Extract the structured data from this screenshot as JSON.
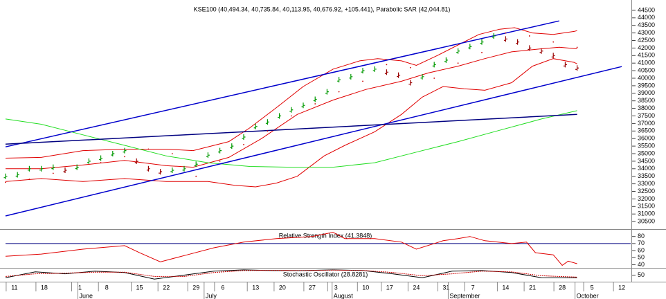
{
  "chart_data": [
    {
      "type": "stock",
      "title": "KSE100 (40,494.34, 40,735.84, 40,113.95, 40,676.92, +105.441), Parabolic SAR (42,044.81)",
      "xlim": [
        0,
        105
      ],
      "xticks": [
        {
          "value": 1.5,
          "label": "11"
        },
        {
          "value": 6.5,
          "label": "18"
        },
        {
          "value": 12.5,
          "label": "1"
        },
        {
          "value": 17,
          "label": "8"
        },
        {
          "value": 22.5,
          "label": "15"
        },
        {
          "value": 27,
          "label": "22"
        },
        {
          "value": 32,
          "label": "29"
        },
        {
          "value": 36.5,
          "label": "6"
        },
        {
          "value": 42,
          "label": "13"
        },
        {
          "value": 46.5,
          "label": "20"
        },
        {
          "value": 51.5,
          "label": "27"
        },
        {
          "value": 55.5,
          "label": "3"
        },
        {
          "value": 60.5,
          "label": "10"
        },
        {
          "value": 64.5,
          "label": "17"
        },
        {
          "value": 69,
          "label": "24"
        },
        {
          "value": 74,
          "label": "31"
        },
        {
          "value": 78.5,
          "label": "7"
        },
        {
          "value": 84,
          "label": "14"
        },
        {
          "value": 88.5,
          "label": "21"
        },
        {
          "value": 93.5,
          "label": "28"
        },
        {
          "value": 98.5,
          "label": "5"
        },
        {
          "value": 103.5,
          "label": "12"
        }
      ],
      "months": [
        {
          "x": 12.5,
          "text": "June"
        },
        {
          "x": 33.7,
          "text": "July"
        },
        {
          "x": 55.2,
          "text": "August"
        },
        {
          "x": 74.7,
          "text": "September"
        },
        {
          "x": 96,
          "text": "October"
        }
      ],
      "ylim": [
        30000,
        45000
      ],
      "yticks": [
        30500,
        31000,
        31500,
        32000,
        32500,
        33000,
        33500,
        34000,
        34500,
        35000,
        35500,
        36000,
        36500,
        37000,
        37500,
        38000,
        38500,
        39000,
        39500,
        40000,
        40500,
        41000,
        41500,
        42000,
        42500,
        43000,
        43500,
        44000,
        44500
      ],
      "price": {
        "up_color": "#009900",
        "down_color": "#990000",
        "x": [
          0,
          2,
          4,
          6,
          8,
          10,
          12,
          14,
          16,
          18,
          20,
          22,
          24,
          26,
          28,
          30,
          32,
          34,
          36,
          38,
          40,
          42,
          44,
          46,
          48,
          50,
          52,
          54,
          56,
          58,
          60,
          62,
          64,
          66,
          68,
          70,
          72,
          74,
          76,
          78,
          80,
          82,
          84,
          86,
          88,
          90,
          92,
          94,
          96
        ],
        "values": [
          33500,
          33600,
          34000,
          34000,
          34100,
          33900,
          34100,
          34500,
          34700,
          35000,
          35200,
          34500,
          34000,
          33800,
          33900,
          34000,
          34300,
          34900,
          35200,
          35500,
          36100,
          36800,
          37100,
          37500,
          37900,
          38200,
          38600,
          39100,
          39900,
          40100,
          40500,
          40600,
          40400,
          40200,
          39700,
          40100,
          40900,
          41200,
          41800,
          42100,
          42400,
          42800,
          42600,
          42400,
          42000,
          41800,
          41500,
          40900,
          40676.92
        ]
      },
      "sar": {
        "color": "#cc0000",
        "x": [
          0,
          4,
          8,
          12,
          16,
          20,
          24,
          28,
          32,
          36,
          40,
          44,
          48,
          52,
          56,
          60,
          64,
          68,
          72,
          76,
          80,
          84,
          88,
          92,
          96
        ],
        "values": [
          33100,
          33300,
          33700,
          34100,
          34400,
          34800,
          35300,
          35000,
          33500,
          34500,
          35600,
          36500,
          37500,
          38300,
          39100,
          39800,
          40900,
          40700,
          40000,
          41000,
          41700,
          43000,
          42800,
          42400,
          42044.81
        ]
      },
      "bands": [
        {
          "color": "#e00000",
          "x": [
            0,
            6,
            13,
            20,
            27,
            31.5,
            37.5,
            41,
            45.5,
            50,
            55,
            59.5,
            62.5,
            66.5,
            69,
            72.5,
            76,
            79.5,
            83,
            85.5,
            88.5,
            92,
            95.5,
            96
          ],
          "values": [
            34700,
            34750,
            35200,
            35300,
            35300,
            35200,
            35800,
            36700,
            38050,
            39450,
            40600,
            41150,
            41300,
            41150,
            40850,
            41500,
            42200,
            42900,
            43250,
            43350,
            43000,
            42900,
            43100,
            43150
          ]
        },
        {
          "color": "#e00000",
          "x": [
            0,
            6,
            13,
            20,
            27,
            31.5,
            37.5,
            43,
            49,
            55,
            60.5,
            66.5,
            71,
            76,
            80.5,
            85,
            90,
            93,
            96
          ],
          "values": [
            34000,
            34000,
            34250,
            34550,
            34200,
            34100,
            34750,
            36000,
            37600,
            38550,
            39250,
            39800,
            40350,
            40800,
            41300,
            41750,
            41950,
            42050,
            41950
          ]
        },
        {
          "color": "#e00000",
          "x": [
            0,
            6,
            13,
            20,
            27,
            34,
            38.5,
            42,
            45.5,
            49,
            53.5,
            57,
            62,
            66.5,
            70,
            73.5,
            77,
            80.5,
            85,
            88.5,
            92,
            95.5,
            96
          ],
          "values": [
            33150,
            33350,
            33150,
            33350,
            33150,
            33150,
            32900,
            32800,
            33050,
            33500,
            34850,
            35550,
            36450,
            37600,
            38750,
            39450,
            39300,
            39200,
            39700,
            40800,
            41300,
            41050,
            40950
          ]
        },
        {
          "color": "#22dd22",
          "x": [
            0,
            6,
            13,
            20,
            27,
            34,
            41,
            48,
            55,
            62,
            69,
            76,
            83,
            90,
            96
          ],
          "values": [
            37300,
            36950,
            36250,
            35550,
            34850,
            34400,
            34150,
            34100,
            34100,
            34400,
            35100,
            35800,
            36550,
            37300,
            37850
          ]
        }
      ],
      "trend_lines": [
        {
          "color": "#0000cc",
          "x": [
            0,
            93
          ],
          "values": [
            35450,
            43800
          ]
        },
        {
          "color": "#0000cc",
          "x": [
            0,
            103.5
          ],
          "values": [
            30870,
            40770
          ]
        },
        {
          "color": "#000080",
          "x": [
            0,
            96
          ],
          "values": [
            35630,
            37600
          ]
        }
      ]
    },
    {
      "type": "line",
      "title": "Relative Strength Index (41.3848)",
      "xlim": [
        0,
        105
      ],
      "ylim": [
        35,
        90
      ],
      "yticks": [
        40,
        50,
        60,
        70,
        80
      ],
      "levels": [
        {
          "value": 70,
          "color": "#000080"
        }
      ],
      "series": [
        {
          "color": "#e00000",
          "x": [
            0,
            6,
            13,
            20,
            22.5,
            26,
            30.5,
            35,
            40,
            45.5,
            51.5,
            55,
            57,
            62,
            66.5,
            69,
            73.5,
            76,
            78,
            80.5,
            85,
            87.5,
            89,
            92,
            93.5,
            94.5,
            96
          ],
          "values": [
            52,
            55,
            62,
            67,
            57,
            44,
            54,
            64,
            72,
            77,
            80,
            86,
            77,
            77,
            72,
            62,
            74,
            77,
            80,
            74,
            70,
            72,
            57,
            54,
            39,
            45,
            41.3848
          ]
        }
      ]
    },
    {
      "type": "line",
      "title": "Stochastic Oscillator (28.8281)",
      "xlim": [
        0,
        105
      ],
      "ylim": [
        0,
        100
      ],
      "yticks": [
        50
      ],
      "series": [
        {
          "color": "#000000",
          "x": [
            0,
            5,
            10,
            15,
            20,
            25,
            30,
            35,
            40,
            45,
            50,
            55,
            60,
            65,
            70,
            75,
            80,
            85,
            90,
            96
          ],
          "values": [
            30,
            75,
            60,
            80,
            70,
            20,
            50,
            80,
            90,
            85,
            85,
            90,
            85,
            60,
            30,
            80,
            85,
            70,
            30,
            28.8281
          ]
        },
        {
          "color": "#cc0000",
          "x": [
            0,
            5,
            10,
            15,
            20,
            25,
            30,
            35,
            40,
            45,
            50,
            55,
            60,
            65,
            70,
            75,
            80,
            85,
            90,
            96
          ],
          "values": [
            40,
            60,
            65,
            72,
            72,
            40,
            40,
            70,
            85,
            87,
            85,
            88,
            86,
            70,
            45,
            60,
            80,
            75,
            45,
            35
          ]
        }
      ]
    }
  ]
}
